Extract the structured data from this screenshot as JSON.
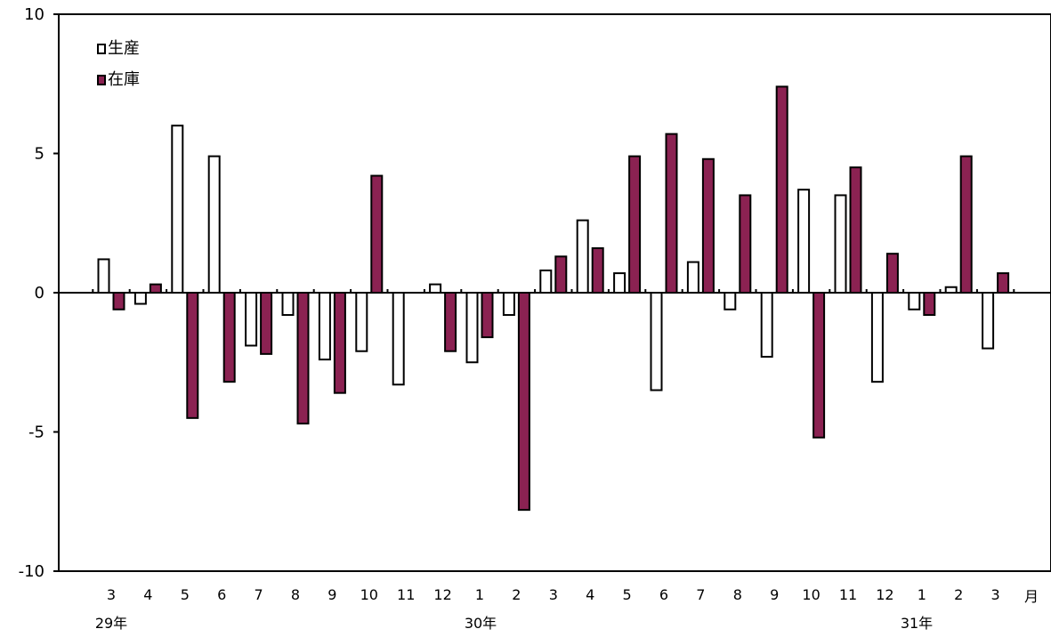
{
  "chart_data": {
    "type": "bar",
    "categories": [
      "3",
      "4",
      "5",
      "6",
      "7",
      "8",
      "9",
      "10",
      "11",
      "12",
      "1",
      "2",
      "3",
      "4",
      "5",
      "6",
      "7",
      "8",
      "9",
      "10",
      "11",
      "12",
      "1",
      "2",
      "3"
    ],
    "series": [
      {
        "name": "生産",
        "color": "#ffffff",
        "values": [
          1.2,
          -0.4,
          6.0,
          4.9,
          -1.9,
          -0.8,
          -2.4,
          -2.1,
          -3.3,
          0.3,
          -2.5,
          -0.8,
          0.8,
          2.6,
          0.7,
          -3.5,
          1.1,
          -0.6,
          -2.3,
          3.7,
          3.5,
          -3.2,
          -0.6,
          0.2,
          -2.0
        ]
      },
      {
        "name": "在庫",
        "color": "#8b2252",
        "values": [
          -0.6,
          0.3,
          -4.5,
          -3.2,
          -2.2,
          -4.7,
          -3.6,
          4.2,
          null,
          -2.1,
          -1.6,
          -7.8,
          1.3,
          1.6,
          4.9,
          5.7,
          4.8,
          3.5,
          7.4,
          -5.2,
          4.5,
          1.4,
          -0.8,
          4.9,
          0.7
        ]
      }
    ],
    "ylim": [
      -10,
      10
    ],
    "yticks": [
      "10",
      "5",
      "0",
      "-5",
      "-10"
    ],
    "x_unit": "月",
    "year_labels": [
      "29年",
      "30年",
      "31年"
    ],
    "legend": "top-left",
    "grid": false
  }
}
